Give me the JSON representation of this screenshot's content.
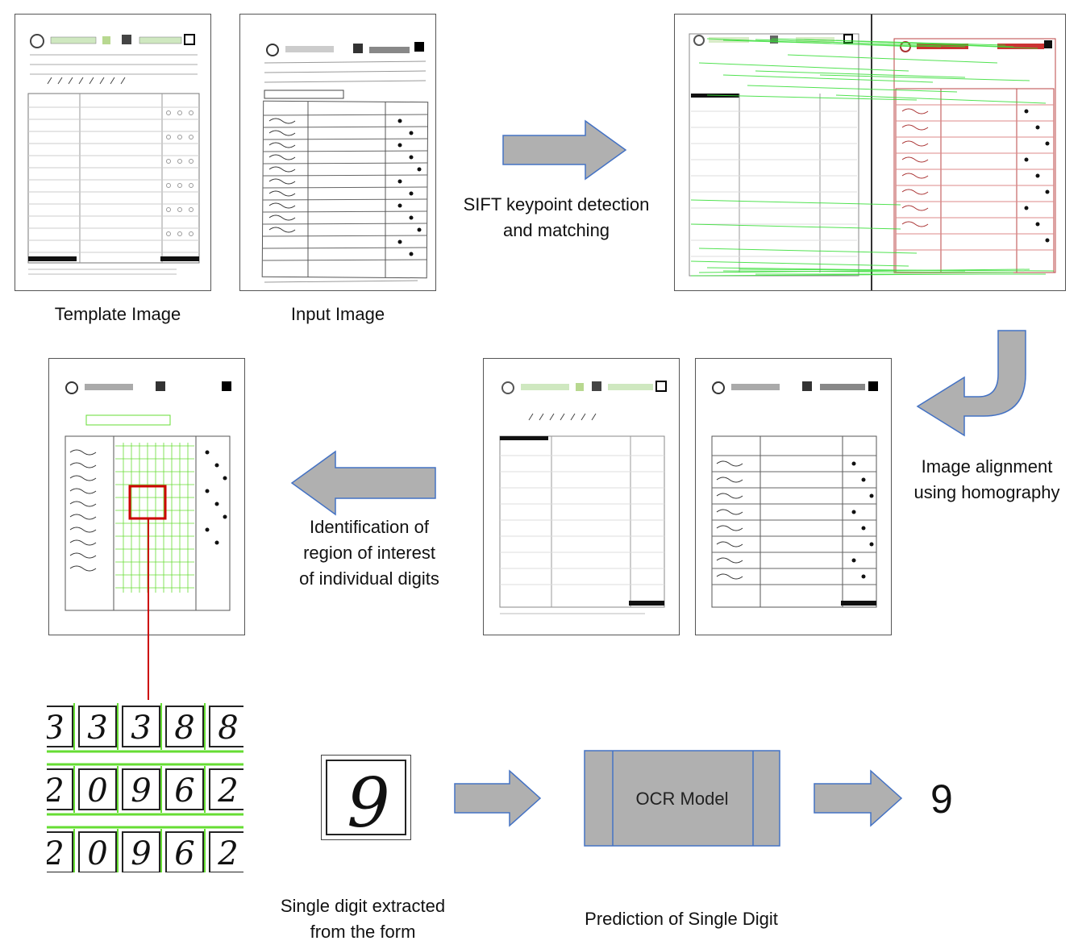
{
  "captions": {
    "template_image": "Template Image",
    "input_image": "Input Image",
    "sift_line1": "SIFT keypoint detection",
    "sift_line2": "and matching",
    "alignment_line1": "Image alignment",
    "alignment_line2": "using homography",
    "roi_line1": "Identification of",
    "roi_line2": "region of interest",
    "roi_line3": "of individual digits",
    "single_digit_line1": "Single digit extracted",
    "single_digit_line2": "from the form",
    "prediction": "Prediction of Single Digit"
  },
  "ocr_model_label": "OCR Model",
  "predicted_digit": "9",
  "crop_rows": [
    [
      "3",
      "3",
      "3",
      "8",
      "8"
    ],
    [
      "2",
      "0",
      "9",
      "6",
      "2"
    ],
    [
      "2",
      "0",
      "9",
      "6",
      "2"
    ]
  ],
  "extracted_digit": "9",
  "colors": {
    "arrow_fill": "#b0b0b0",
    "arrow_stroke": "#4472c4",
    "match_lines": "#33dd33",
    "highlight": "#cc0000",
    "grid_green": "#66dd33"
  }
}
